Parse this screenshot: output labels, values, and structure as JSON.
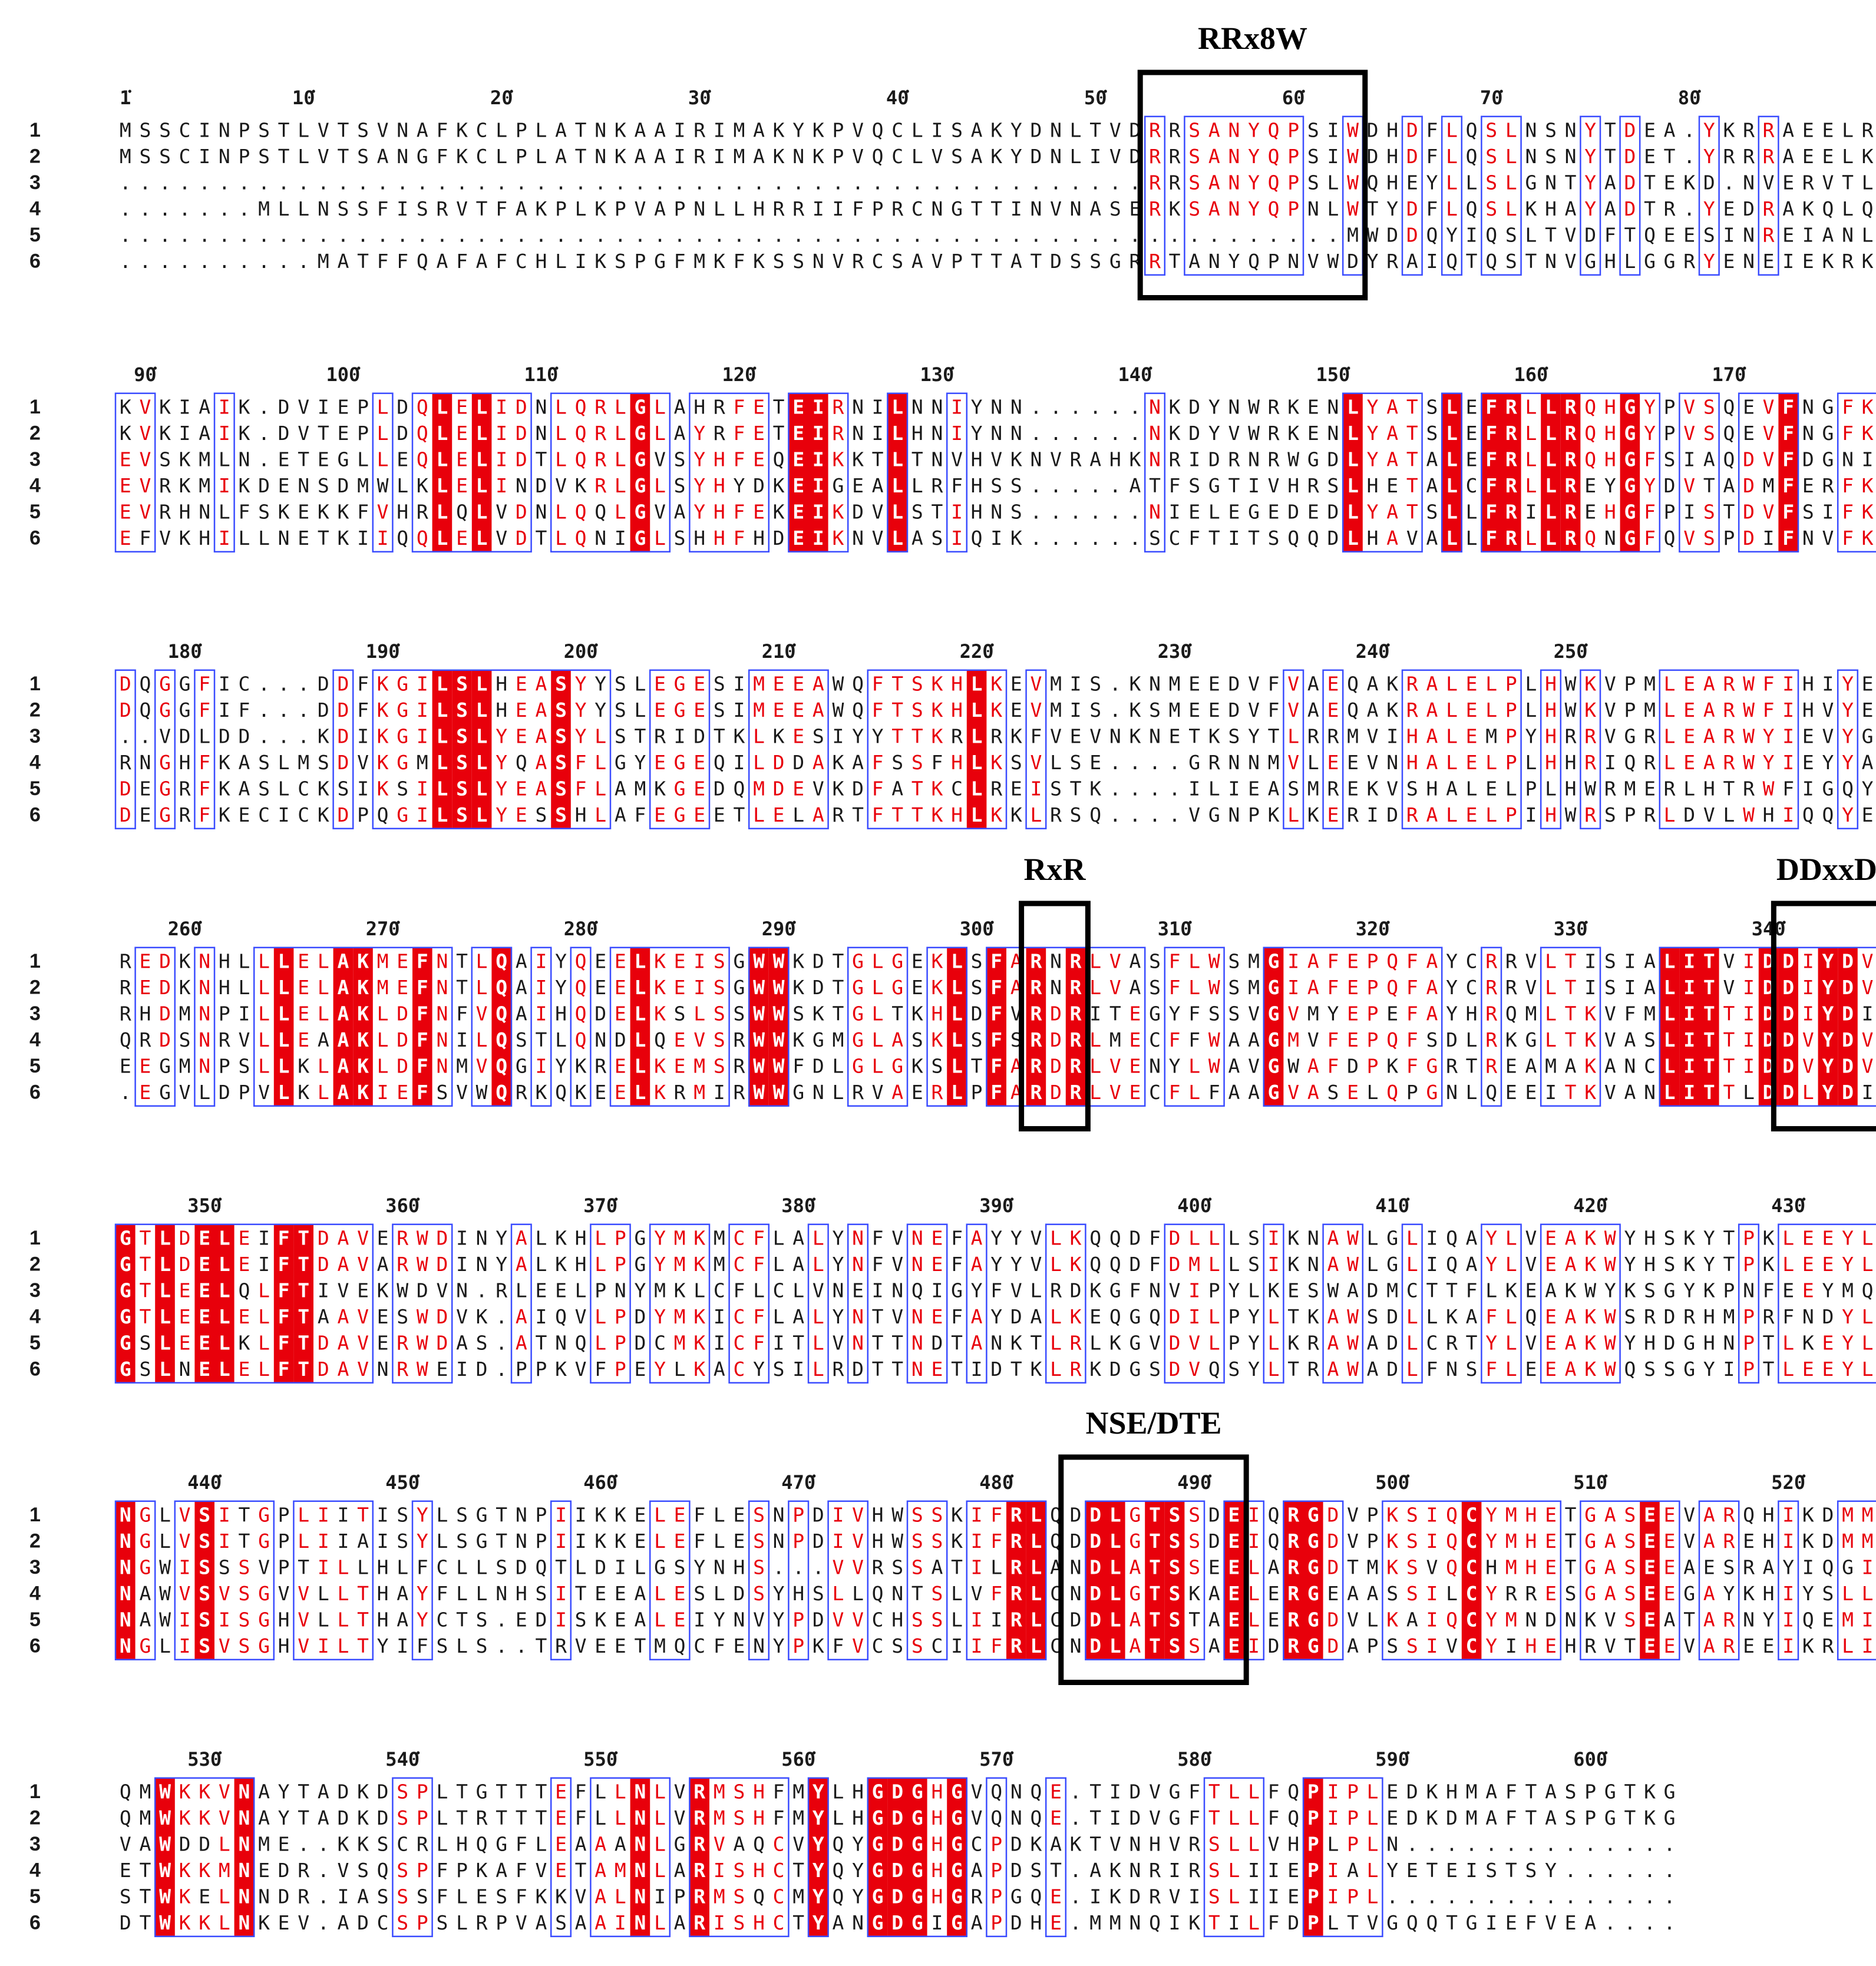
{
  "colors": {
    "identical_bg": "#e8000b",
    "identical_fg": "#ffffff",
    "similar_fg": "#e8000b",
    "similar_frame": "#3a4cff",
    "plain_fg": "#1a1a1a",
    "motif_box": "#000000"
  },
  "sequence_ids": [
    "1",
    "2",
    "3",
    "4",
    "5",
    "6"
  ],
  "blocks": [
    {
      "start": 1,
      "rows": [
        "MSSCINPSTLVTSVNAFKCLPLATNKAAIRIMAKYKPVQCLISAKYDNLTVDRRSANYQPSIWDHDFLQSLNSNYTDEA.YKRRAEELRG",
        "MSSCINPSTLVTSANGFKCLPLATNKAAIRIMAKNKPVQCLVSAKYDNLIVDRRSANYQPSIWDHDFLQSLNSNYTDET.YRRRAEELKG",
        "....................................................RRSANYQPSLWQHEYLLSLGNTYADTEKD.NVERVTLLKQ",
        ".......MLLNSSFISRVTFAKPLKPVAPNLLHRRIIFPRCNGTTINVNASERKSANYQPNLWTYDFLQSLKHAYADTR.YEDRAKQLQE",
        "..............................................................MWDDQYIQSLTVDFTQEESINREIANLKE",
        "..........MATFFQAFAFCHLIKSPGFMKFKSSNVRCSAVPTTATDSSGRRTANYQPNVWDYRAIQTQSTNVGHLGGRYENEIEKRK"
      ],
      "ticks": [
        "1",
        "10",
        "20",
        "30",
        "40",
        "50",
        "60",
        "70",
        "80"
      ]
    },
    {
      "start": 89,
      "rows": [
        "KVKIAIK.DVIEPLDQLELIDNLQRLGLAHRFETEIRNILNNIYNN......NKDYNWRKENLYATSLEFRLLRQHGYPVSQEVFNGFKD",
        "KVKIAIK.DVTEPLDQLELIDNLQRLGLAYRFETEIRNILHNIYNN......NKDYVWRKENLYATSLEFRLLRQHGYPVSQEVFNGFKD",
        "EVSKMLN.ETEGLLEQLELIDTLQRLGVSYHFEQEIKKTLTNVHVKNVRAHKNRIDRNRWGDLYATALEFRLLRQHGFSIAQDVFDGNIG",
        "EVRKMIKDENSDMWLKLELINDVKRLGLSYHYDKEIGEALLRFHSS.....ATFSGTIVHRSLHETALCFRLLREYGYDVTADMFERFKE",
        "EVRHNLFSKEKKFVHRLQLVDNLQQLGVAYHFEKEIKDVLSTIHNS......NIELEGEDEDLYATSLLFRILREHGFPISTDVFSIFKD",
        "EFVKHILLNETKIIQQLELVDTLQNIGLSHHFHDEIKNVLASIQIK......SCFTITSQQDLHAVALLFRLLRQNGFQVSPDIFNVFKD"
      ],
      "ticks": [
        "90",
        "100",
        "110",
        "120",
        "130",
        "140",
        "150",
        "160",
        "170"
      ]
    },
    {
      "start": 177,
      "rows": [
        "DQGGFIC...DDFKGILSLHEASYYSLEGESIMEEAWQFTSKHLKEVMIS.KNMEEDVFVAEQAKRALELPLHWKVPMLEARWFIHIYER",
        "DQGGFIF...DDFKGILSLHEASYYSLEGESIMEEAWQFTSKHLKEVMIS.KSMEEDVFVAEQAKRALELPLHWKVPMLEARWFIHVYEK",
        "..VDLDD...KDIKGILSLYEASYLSTRIDTKLKESIYYTTKRLRKFVEVNKNETKSYTLRRMVIHALEMPYHRRVGRLEARWYIEVYGE",
        "RNGHFKASLMSDVKGMLSLYQASFLGYEGEQILDDAKAFSSFHLKSVLSE....GRNNMVLEEVNHALELPLHHRIQRLEARWYIEYYAK",
        "DEGRFKASLCKSIKSILSLYEASFLAMKGEDQMDEVKDFATKCLREISTK....ILIEASMREKVSHALELPLHWRMERLHTRWFIGQYER",
        "DEGRFKECICKDPQGILSLYESSHLAFEGEETLELARTFTTKHLKKLRSQ....VGNPKLKERIDRALELPIHWRSPRLDVLWHIQQYEE"
      ],
      "ticks": [
        "180",
        "190",
        "200",
        "210",
        "220",
        "230",
        "240",
        "250"
      ]
    },
    {
      "start": 257,
      "rows": [
        "REDKNHLLLELAKMEFNTLQAIYQEELKEISGWWKDTGLGEKLSFARNRLVASFLWSMGIAFEPQFAYCRRVLTISIALITVIDDIYDVY",
        "REDKNHLLLELAKMEFNTLQAIYQEELKEISGWWKDTGLGEKLSFARNRLVASFLWSMGIAFEPQFAYCRRVLTISIALITVIDDIYDVY",
        "RHDMNPILLELAKLDFNFVQAIHQDELKSLSSWWSKTGLTKHLDFVRDRITEGYFSSVGVMYEPEFAYHRQMLTKVFMLITTIDDIYDIY",
        "QRDSNRVLLEAAKLDFNILQSTLQNDLQEVSRWWKGMGLASKLSFSRDRLMECFFWAAGMVFEPQFSDLRKGLTKVASLITTIDDVYDVY",
        "EEGMNPSLLKLAKLDFNMVQGIYKRELKEMSRWWFDLGLGKSLTFARDRLVENYLWAVGWAFDPKFGRTREAMAKANCLITTIDDVYDVY",
        ".EGVLDPVLKLAKIEFSVWQRKQKEELKRMIRWWGNLRVAERLPFARDRLVECFLFAAGVASELQPGNLQEEITKVANLITTLDDLYDIY"
      ],
      "ticks": [
        "260",
        "270",
        "280",
        "290",
        "300",
        "310",
        "320",
        "330",
        "340"
      ]
    },
    {
      "start": 346,
      "rows": [
        "GTLDELEIFTDAVERWDINYALKHLPGYMKMCFLALYNFVNEFAYYVLKQQDFDLLLSIKNAWLGLIQAYLVEAKWYHSKYTPKLEEYLE",
        "GTLDELEIFTDAVARWDINYALKHLPGYMKMCFLALYNFVNEFAYYVLKQQDFDMLLSIKNAWLGLIQAYLVEAKWYHSKYTPKLEEYLE",
        "GTLEELQLFTIVEKWDVN.RLEELPNYMKLCFLCLVNEINQIGYFVLRDKGFNVIPYLKESWADMCTTFLKEAKWYKSGYKPNFEEYMQ",
        "GTLEELELFTAAVESWDVK.AIQVLPDYMKICFLALYNTVNEFAYDALKEQGQDILPYLTKAWSDLLKAFLQEAKWSRDRHMPRFNDYLN",
        "GSLEELKLFTDAVERWDAS.ATNQLPDCMKICFITLVNTTNDTANKTLRLKGVDVLPYLKRAWADLCRTYLVEAKWYHDGHNPTLKEYLD",
        "GSLNELELFTDAVNRWEID.PPKVFPEYLKACYSILRDTTNETIDTKLRKDGSDVQSYLTRAWADLFNSFLEEAKWQSSGYIPTLEEYLN"
      ],
      "ticks": [
        "350",
        "360",
        "370",
        "380",
        "390",
        "400",
        "410",
        "420",
        "430"
      ]
    },
    {
      "start": 436,
      "rows": [
        "NGLVSITGPLIITISYLSGTNPIIKKELEFLESNPDIVHWSSKIFRLQDDLGTSSDEIQRGDVPKSIQCYMHETGASEEVARQHIKDMMR",
        "NGLVSITGPLIIAISYLSGTNPIIKKELEFLESNPDIVHWSSKIFRLQDDLGTSSDEIQRGDVPKSIQCYMHETGASEEVAREHIKDMMR",
        "NGWISSSVPTILLHLFCLLSDQTLDILGSYNHS...VVRSSATILRLANDLATSSEELARGDTMKSVQCHMHETGASEEAESRAYIQGIIG",
        "NAWVSVSGVVLLTHAYFLLNHSITEEALESLDSYHSLLQNTSLVFRLCNDLGTSKAELERGEAASSILCYRRESGASEEGAYKHIYSLLN",
        "NAWISISGHVLLTHAYCTS.EDISKEALEIYNVYPDVVCHSSLIIRLCDDLATSTAELERGDVLKAIQCYMNDNKVSEATARNYIQEMIA",
        "NGLISVSGHVILTYIFSLS..TRVEETMQCFENYPKFVCSSCIIFRLCNDLATSSAEIDRGDAPSSIVCYIHEHRVTEEVAREEIKRLIY"
      ],
      "ticks": [
        "440",
        "450",
        "460",
        "470",
        "480",
        "490",
        "500",
        "510",
        "520"
      ]
    },
    {
      "start": 526,
      "rows": [
        "QMWKKVNAYTADKDSPLTGTTTEFLLNLVRMSHFMYLHGDGHGVQNQE.TIDVGFTLLFQPIPLEDKHMAFTASPGTKG",
        "QMWKKVNAYTADKDSPLTRTTTEFLLNLVRMSHFMYLHGDGHGVQNQE.TIDVGFTLLFQPIPLEDKDMAFTASPGTKG",
        "VAWDDLNME..KKSCRLHQGFLEAAANLGRVAQCVYQYGDGHGCPDKAKTVNHVRSLLVHPLPLN..............",
        "ETWKKMNEDR.VSQSPFPKAFVETAMNLARISHCTYQYGDGHGAPDST.AKNRIRSLIIEPIALYETEISTSY......",
        "STWKELNNDR.IASSSFLESFKKVALNIPRMSQCMYQYGDGHGRPGQE.IKDRVISLIIEPIPL...............",
        "DTWKKLNKEV.ADCSPSLRPVASAAINLARISHCTYANGDGIGAPDHE.MMNQIKTILFDPLTVGQQTGIEFVEA...."
      ],
      "ticks": [
        "530",
        "540",
        "550",
        "560",
        "570",
        "580",
        "590",
        "600"
      ]
    }
  ],
  "motifs": [
    {
      "label": "RRx8W",
      "block": 0,
      "from_col": 52,
      "to_col": 62
    },
    {
      "label": "RxR",
      "block": 3,
      "from_col": 46,
      "to_col": 48
    },
    {
      "label": "DDxxD",
      "block": 3,
      "from_col": 84,
      "to_col": 88
    },
    {
      "label": "NSE/DTE",
      "block": 5,
      "from_col": 48,
      "to_col": 56
    }
  ]
}
